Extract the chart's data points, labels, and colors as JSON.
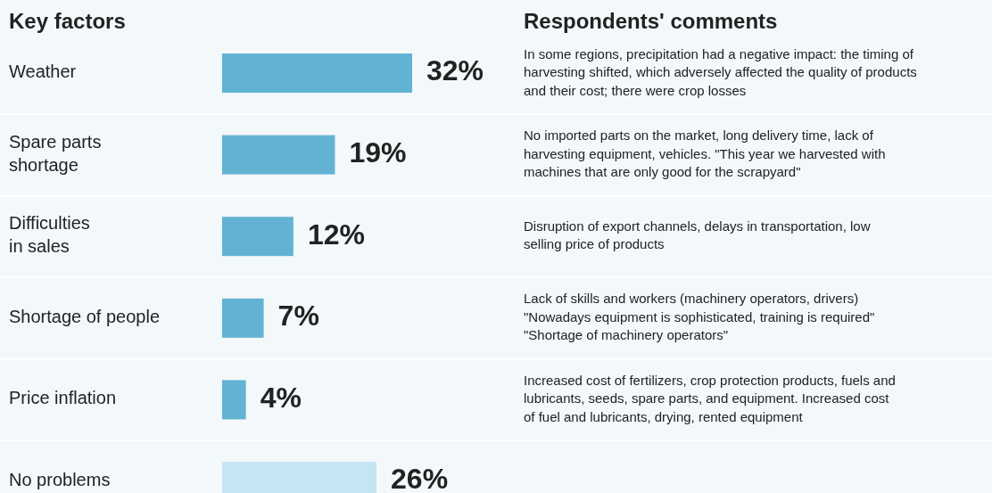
{
  "chart_data": {
    "type": "bar",
    "orientation": "horizontal",
    "title": "Key factors",
    "subtitle": "Respondents' comments",
    "categories": [
      "Weather",
      "Spare parts\nshortage",
      "Difficulties\nin sales",
      "Shortage of people",
      "Price inflation",
      "No problems"
    ],
    "values": [
      32,
      19,
      12,
      7,
      4,
      26
    ],
    "value_labels": [
      "32%",
      "19%",
      "12%",
      "7%",
      "4%",
      "26%"
    ],
    "colors": [
      "#62b3d3",
      "#62b3d3",
      "#62b3d3",
      "#62b3d3",
      "#62b3d3",
      "#c6e5f2"
    ],
    "annotations": [
      "In some regions, precipitation had a negative impact: the timing of\nharvesting shifted, which adversely affected the quality of products\nand their cost; there were crop losses",
      "No imported parts on the market, long delivery time, lack of\nharvesting equipment, vehicles. \"This year we harvested with\nmachines that are only good for the scrapyard\"",
      "Disruption of export channels, delays in transportation, low\nselling price of products",
      "Lack of skills and workers (machinery operators, drivers)\n\"Nowadays equipment is sophisticated, training is required\"\n\"Shortage of machinery operators\"",
      "Increased cost of fertilizers, crop protection products, fuels and\nlubricants, seeds, spare parts, and equipment. Increased cost\nof fuel and lubricants, drying, rented equipment"
    ]
  }
}
